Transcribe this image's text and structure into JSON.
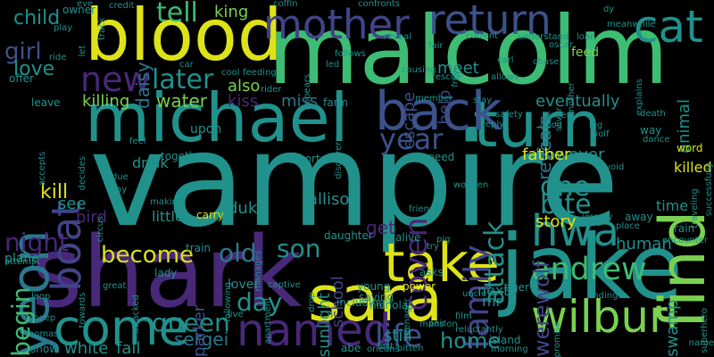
{
  "palette": {
    "yellow": "#dde318",
    "green": "#3dbc74",
    "lime": "#7ad151",
    "teal": "#21918c",
    "cyan": "#2a788e",
    "blue": "#3b528b",
    "indigo": "#414487",
    "purple": "#482878",
    "lightgreen": "#5ec962",
    "olive": "#bddf26"
  },
  "words": [
    {
      "text": "vampire",
      "color": "teal"
    },
    {
      "text": "malcolm",
      "color": "green"
    },
    {
      "text": "shark",
      "color": "purple"
    },
    {
      "text": "jake",
      "color": "teal"
    },
    {
      "text": "blood",
      "color": "yellow"
    },
    {
      "text": "michael",
      "color": "teal"
    },
    {
      "text": "sara",
      "color": "yellow"
    },
    {
      "text": "yeon",
      "color": "cyan"
    },
    {
      "text": "turn",
      "color": "teal"
    },
    {
      "text": "find",
      "color": "lime"
    },
    {
      "text": "take",
      "color": "yellow"
    },
    {
      "text": "return",
      "color": "blue"
    },
    {
      "text": "back",
      "color": "blue"
    },
    {
      "text": "boat",
      "color": "indigo"
    },
    {
      "text": "mother",
      "color": "indigo"
    },
    {
      "text": "named",
      "color": "purple"
    },
    {
      "text": "wilbur",
      "color": "lime"
    },
    {
      "text": "hwa",
      "color": "teal"
    },
    {
      "text": "cat",
      "color": "teal"
    },
    {
      "text": "come",
      "color": "teal"
    },
    {
      "text": "andrew",
      "color": "green"
    },
    {
      "text": "new",
      "color": "purple"
    },
    {
      "text": "family",
      "color": "indigo"
    },
    {
      "text": "coven",
      "color": "purple"
    },
    {
      "text": "night",
      "color": "purple"
    },
    {
      "text": "life",
      "color": "blue"
    },
    {
      "text": "tell",
      "color": "green"
    },
    {
      "text": "later",
      "color": "teal"
    },
    {
      "text": "attack",
      "color": "teal"
    },
    {
      "text": "year",
      "color": "blue"
    },
    {
      "text": "son",
      "color": "teal"
    },
    {
      "text": "become",
      "color": "yellow"
    },
    {
      "text": "day",
      "color": "teal"
    },
    {
      "text": "old",
      "color": "cyan"
    },
    {
      "text": "queen",
      "color": "teal"
    },
    {
      "text": "begin",
      "color": "green"
    },
    {
      "text": "one",
      "color": "teal"
    },
    {
      "text": "bite",
      "color": "teal"
    },
    {
      "text": "werewolf",
      "color": "indigo"
    },
    {
      "text": "home",
      "color": "teal"
    },
    {
      "text": "kill",
      "color": "yellow"
    },
    {
      "text": "reveals",
      "color": "cyan"
    },
    {
      "text": "escape",
      "color": "blue"
    },
    {
      "text": "girl",
      "color": "blue"
    },
    {
      "text": "love",
      "color": "teal"
    },
    {
      "text": "child",
      "color": "teal"
    },
    {
      "text": "water",
      "color": "lime"
    },
    {
      "text": "killing",
      "color": "lime"
    },
    {
      "text": "daisy",
      "color": "cyan"
    },
    {
      "text": "king",
      "color": "lime"
    },
    {
      "text": "also",
      "color": "lime"
    },
    {
      "text": "kiss",
      "color": "purple"
    },
    {
      "text": "help",
      "color": "indigo"
    },
    {
      "text": "miss",
      "color": "cyan"
    },
    {
      "text": "allison",
      "color": "teal"
    },
    {
      "text": "duke",
      "color": "teal"
    },
    {
      "text": "however",
      "color": "teal"
    },
    {
      "text": "eventually",
      "color": "teal"
    },
    {
      "text": "swamp",
      "color": "teal"
    },
    {
      "text": "animal",
      "color": "teal"
    },
    {
      "text": "meet",
      "color": "teal"
    },
    {
      "text": "father",
      "color": "yellow"
    },
    {
      "text": "story",
      "color": "yellow"
    },
    {
      "text": "human",
      "color": "teal"
    },
    {
      "text": "time",
      "color": "teal"
    },
    {
      "text": "killed",
      "color": "yellow"
    },
    {
      "text": "sergei",
      "color": "cyan"
    },
    {
      "text": "parker",
      "color": "blue"
    },
    {
      "text": "white",
      "color": "teal"
    },
    {
      "text": "fall",
      "color": "teal"
    },
    {
      "text": "still",
      "color": "teal"
    },
    {
      "text": "next",
      "color": "teal"
    },
    {
      "text": "mr",
      "color": "teal"
    },
    {
      "text": "sunlight",
      "color": "teal"
    },
    {
      "text": "school",
      "color": "indigo"
    },
    {
      "text": "get",
      "color": "purple"
    },
    {
      "text": "see",
      "color": "teal"
    },
    {
      "text": "bird",
      "color": "purple"
    },
    {
      "text": "little",
      "color": "teal"
    },
    {
      "text": "drink",
      "color": "teal"
    },
    {
      "text": "lover",
      "color": "teal"
    },
    {
      "text": "plane",
      "color": "teal"
    },
    {
      "text": "feed",
      "color": "lime"
    },
    {
      "text": "word",
      "color": "yellow"
    },
    {
      "text": "rain",
      "color": "teal"
    },
    {
      "text": "way",
      "color": "teal"
    },
    {
      "text": "immortal",
      "color": "teal"
    },
    {
      "text": "speed",
      "color": "teal"
    },
    {
      "text": "daughter",
      "color": "teal"
    },
    {
      "text": "young",
      "color": "teal"
    },
    {
      "text": "away",
      "color": "teal"
    },
    {
      "text": "ride",
      "color": "teal"
    },
    {
      "text": "offer",
      "color": "teal"
    },
    {
      "text": "leave",
      "color": "teal"
    },
    {
      "text": "owner",
      "color": "teal"
    },
    {
      "text": "play",
      "color": "teal"
    },
    {
      "text": "upon",
      "color": "teal"
    },
    {
      "text": "farm",
      "color": "teal"
    },
    {
      "text": "stay",
      "color": "teal"
    },
    {
      "text": "apartment",
      "color": "teal"
    },
    {
      "text": "train",
      "color": "teal"
    },
    {
      "text": "lady",
      "color": "teal"
    },
    {
      "text": "carry",
      "color": "yellow"
    },
    {
      "text": "making",
      "color": "teal"
    },
    {
      "text": "together",
      "color": "teal"
    },
    {
      "text": "asks",
      "color": "teal"
    },
    {
      "text": "island",
      "color": "teal"
    },
    {
      "text": "tiger",
      "color": "teal"
    },
    {
      "text": "including",
      "color": "teal"
    },
    {
      "text": "abe",
      "color": "teal"
    },
    {
      "text": "last",
      "color": "teal"
    },
    {
      "text": "thomas",
      "color": "teal"
    },
    {
      "text": "show",
      "color": "teal"
    },
    {
      "text": "sheep",
      "color": "teal"
    },
    {
      "text": "loop",
      "color": "teal"
    },
    {
      "text": "attempt",
      "color": "teal"
    },
    {
      "text": "towards",
      "color": "teal"
    },
    {
      "text": "great",
      "color": "teal"
    },
    {
      "text": "live",
      "color": "teal"
    },
    {
      "text": "nicholas",
      "color": "teal"
    },
    {
      "text": "saying",
      "color": "teal"
    },
    {
      "text": "power",
      "color": "yellow"
    },
    {
      "text": "mansion",
      "color": "teal"
    },
    {
      "text": "film",
      "color": "teal"
    },
    {
      "text": "pair",
      "color": "teal"
    },
    {
      "text": "reluctantly",
      "color": "teal"
    },
    {
      "text": "morning",
      "color": "teal"
    },
    {
      "text": "promise",
      "color": "teal"
    },
    {
      "text": "finding",
      "color": "teal"
    },
    {
      "text": "name",
      "color": "teal"
    },
    {
      "text": "superhero",
      "color": "teal"
    },
    {
      "text": "orleans",
      "color": "teal"
    },
    {
      "text": "bitten",
      "color": "teal"
    },
    {
      "text": "uncle",
      "color": "teal"
    },
    {
      "text": "captive",
      "color": "teal"
    },
    {
      "text": "following",
      "color": "teal"
    },
    {
      "text": "manages",
      "color": "teal"
    },
    {
      "text": "drop",
      "color": "teal"
    },
    {
      "text": "teenager",
      "color": "teal"
    },
    {
      "text": "alive",
      "color": "teal"
    },
    {
      "text": "friend",
      "color": "teal"
    },
    {
      "text": "jeremy",
      "color": "teal"
    },
    {
      "text": "place",
      "color": "teal"
    },
    {
      "text": "encounter",
      "color": "teal"
    },
    {
      "text": "traveling",
      "color": "teal"
    },
    {
      "text": "successfully",
      "color": "teal"
    },
    {
      "text": "avoid",
      "color": "teal"
    },
    {
      "text": "wooden",
      "color": "teal"
    },
    {
      "text": "pig",
      "color": "teal"
    },
    {
      "text": "try",
      "color": "teal"
    },
    {
      "text": "due",
      "color": "teal"
    },
    {
      "text": "say",
      "color": "teal"
    },
    {
      "text": "circus",
      "color": "teal"
    },
    {
      "text": "decides",
      "color": "teal"
    },
    {
      "text": "feel",
      "color": "teal"
    },
    {
      "text": "accepts",
      "color": "teal"
    },
    {
      "text": "attacked",
      "color": "teal"
    },
    {
      "text": "appears",
      "color": "teal"
    },
    {
      "text": "discovers",
      "color": "teal"
    },
    {
      "text": "member",
      "color": "teal"
    },
    {
      "text": "rescue",
      "color": "teal"
    },
    {
      "text": "free",
      "color": "teal"
    },
    {
      "text": "led",
      "color": "teal"
    },
    {
      "text": "follows",
      "color": "teal"
    },
    {
      "text": "causing",
      "color": "teal"
    },
    {
      "text": "allows",
      "color": "teal"
    },
    {
      "text": "carl",
      "color": "teal"
    },
    {
      "text": "reply",
      "color": "teal"
    },
    {
      "text": "safety",
      "color": "teal"
    },
    {
      "text": "vincent",
      "color": "teal"
    },
    {
      "text": "good",
      "color": "teal"
    },
    {
      "text": "silver",
      "color": "teal"
    },
    {
      "text": "chase",
      "color": "teal"
    },
    {
      "text": "another",
      "color": "teal"
    },
    {
      "text": "oscar",
      "color": "teal"
    },
    {
      "text": "current",
      "color": "teal"
    },
    {
      "text": "understand",
      "color": "teal"
    },
    {
      "text": "reveal",
      "color": "teal"
    },
    {
      "text": "fair",
      "color": "teal"
    },
    {
      "text": "confronts",
      "color": "teal"
    },
    {
      "text": "loan",
      "color": "teal"
    },
    {
      "text": "coffin",
      "color": "teal"
    },
    {
      "text": "credit",
      "color": "teal"
    },
    {
      "text": "track",
      "color": "teal"
    },
    {
      "text": "eve",
      "color": "teal"
    },
    {
      "text": "let",
      "color": "teal"
    },
    {
      "text": "cool",
      "color": "teal"
    },
    {
      "text": "feeding",
      "color": "teal"
    },
    {
      "text": "rider",
      "color": "teal"
    },
    {
      "text": "car",
      "color": "teal"
    },
    {
      "text": "meanwhile",
      "color": "teal"
    },
    {
      "text": "leg",
      "color": "teal"
    },
    {
      "text": "wolf",
      "color": "teal"
    },
    {
      "text": "dance",
      "color": "teal"
    },
    {
      "text": "death",
      "color": "teal"
    },
    {
      "text": "explains",
      "color": "teal"
    },
    {
      "text": "dy",
      "color": "teal"
    }
  ]
}
